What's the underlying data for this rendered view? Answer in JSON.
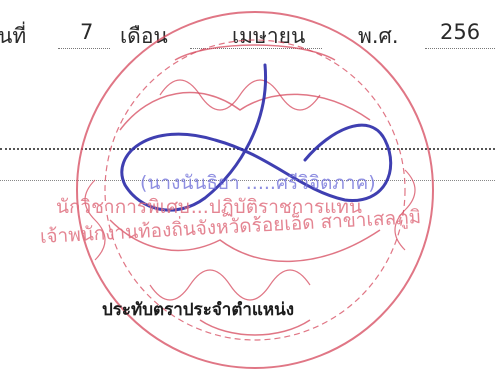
{
  "date_line": {
    "day_prefix": "นที่",
    "day_value": "7",
    "month_label": "เดือน",
    "month_value": "เมษายน",
    "year_label": "พ.ศ.",
    "year_value": "256"
  },
  "stamp": {
    "name_in_parens": "(นางนันธิยา .....ศรีวิจิตภาค)",
    "acting_line": "นักวิชาการพิเศษ...ปฏิบัติราชการแทน",
    "position_line": "เจ้าพนักงานท้องถิ่นจังหวัดร้อยเอ็ด สาขาเสลภูมิ",
    "caption": "ประทับตราประจำตำแหน่ง"
  },
  "colors": {
    "seal_red": "#d6485c",
    "signature_blue": "#2a2aa8"
  }
}
